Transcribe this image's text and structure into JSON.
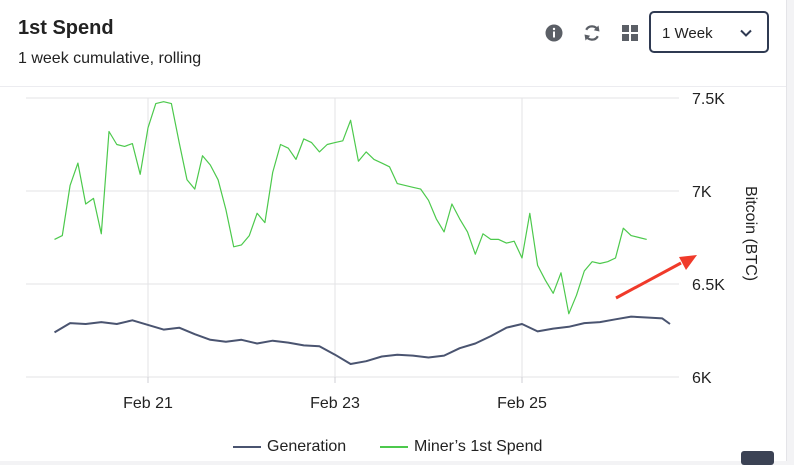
{
  "header": {
    "title": "1st Spend",
    "subtitle": "1 week cumulative, rolling",
    "period_select": {
      "value": "1 Week"
    }
  },
  "icons": [
    "info-icon",
    "refresh-icon",
    "grid-icon",
    "chevron-down-icon"
  ],
  "colors": {
    "generation": "#4a5470",
    "first_spend": "#4cc94c",
    "annotation_arrow": "#f03a2a"
  },
  "chart_data": {
    "type": "line",
    "ylabel": "Bitcoin (BTC)",
    "ylim": [
      6000,
      7500
    ],
    "y_ticks": [
      {
        "value": 6000,
        "label": "6K"
      },
      {
        "value": 6500,
        "label": "6.5K"
      },
      {
        "value": 7000,
        "label": "7K"
      },
      {
        "value": 7500,
        "label": "7.5K"
      }
    ],
    "x_ticks": [
      "Feb 21",
      "Feb 23",
      "Feb 25"
    ],
    "grid": true,
    "legend_position": "bottom",
    "series": [
      {
        "name": "Generation",
        "color": "#4a5470",
        "points": [
          [
            "Feb 20 00:00",
            6240
          ],
          [
            "Feb 20 04:00",
            6290
          ],
          [
            "Feb 20 08:00",
            6285
          ],
          [
            "Feb 20 12:00",
            6295
          ],
          [
            "Feb 20 16:00",
            6285
          ],
          [
            "Feb 20 20:00",
            6305
          ],
          [
            "Feb 21 00:00",
            6280
          ],
          [
            "Feb 21 04:00",
            6255
          ],
          [
            "Feb 21 08:00",
            6265
          ],
          [
            "Feb 21 12:00",
            6230
          ],
          [
            "Feb 21 16:00",
            6200
          ],
          [
            "Feb 21 20:00",
            6190
          ],
          [
            "Feb 22 00:00",
            6200
          ],
          [
            "Feb 22 04:00",
            6180
          ],
          [
            "Feb 22 08:00",
            6195
          ],
          [
            "Feb 22 12:00",
            6185
          ],
          [
            "Feb 22 16:00",
            6170
          ],
          [
            "Feb 22 20:00",
            6165
          ],
          [
            "Feb 23 00:00",
            6120
          ],
          [
            "Feb 23 04:00",
            6070
          ],
          [
            "Feb 23 08:00",
            6085
          ],
          [
            "Feb 23 12:00",
            6110
          ],
          [
            "Feb 23 16:00",
            6120
          ],
          [
            "Feb 23 20:00",
            6115
          ],
          [
            "Feb 24 00:00",
            6105
          ],
          [
            "Feb 24 04:00",
            6115
          ],
          [
            "Feb 24 08:00",
            6155
          ],
          [
            "Feb 24 12:00",
            6180
          ],
          [
            "Feb 24 16:00",
            6220
          ],
          [
            "Feb 24 20:00",
            6265
          ],
          [
            "Feb 25 00:00",
            6285
          ],
          [
            "Feb 25 04:00",
            6245
          ],
          [
            "Feb 25 08:00",
            6260
          ],
          [
            "Feb 25 12:00",
            6270
          ],
          [
            "Feb 25 16:00",
            6290
          ],
          [
            "Feb 25 20:00",
            6295
          ],
          [
            "Feb 26 00:00",
            6310
          ],
          [
            "Feb 26 04:00",
            6325
          ],
          [
            "Feb 26 08:00",
            6320
          ],
          [
            "Feb 26 12:00",
            6315
          ],
          [
            "Feb 26 14:00",
            6285
          ]
        ]
      },
      {
        "name": "Miner’s 1st Spend",
        "color": "#4cc94c",
        "points": [
          [
            "Feb 20 00:00",
            6740
          ],
          [
            "Feb 20 02:00",
            6760
          ],
          [
            "Feb 20 04:00",
            7030
          ],
          [
            "Feb 20 06:00",
            7150
          ],
          [
            "Feb 20 08:00",
            6930
          ],
          [
            "Feb 20 10:00",
            6960
          ],
          [
            "Feb 20 12:00",
            6770
          ],
          [
            "Feb 20 14:00",
            7320
          ],
          [
            "Feb 20 16:00",
            7250
          ],
          [
            "Feb 20 18:00",
            7240
          ],
          [
            "Feb 20 20:00",
            7255
          ],
          [
            "Feb 20 22:00",
            7090
          ],
          [
            "Feb 21 00:00",
            7340
          ],
          [
            "Feb 21 02:00",
            7470
          ],
          [
            "Feb 21 04:00",
            7480
          ],
          [
            "Feb 21 06:00",
            7470
          ],
          [
            "Feb 21 08:00",
            7260
          ],
          [
            "Feb 21 10:00",
            7060
          ],
          [
            "Feb 21 12:00",
            7010
          ],
          [
            "Feb 21 14:00",
            7190
          ],
          [
            "Feb 21 16:00",
            7140
          ],
          [
            "Feb 21 18:00",
            7060
          ],
          [
            "Feb 21 20:00",
            6900
          ],
          [
            "Feb 21 22:00",
            6700
          ],
          [
            "Feb 22 00:00",
            6710
          ],
          [
            "Feb 22 02:00",
            6760
          ],
          [
            "Feb 22 04:00",
            6880
          ],
          [
            "Feb 22 06:00",
            6830
          ],
          [
            "Feb 22 08:00",
            7100
          ],
          [
            "Feb 22 10:00",
            7250
          ],
          [
            "Feb 22 12:00",
            7230
          ],
          [
            "Feb 22 14:00",
            7170
          ],
          [
            "Feb 22 16:00",
            7280
          ],
          [
            "Feb 22 18:00",
            7260
          ],
          [
            "Feb 22 20:00",
            7210
          ],
          [
            "Feb 22 22:00",
            7250
          ],
          [
            "Feb 23 00:00",
            7260
          ],
          [
            "Feb 23 02:00",
            7270
          ],
          [
            "Feb 23 04:00",
            7380
          ],
          [
            "Feb 23 06:00",
            7160
          ],
          [
            "Feb 23 08:00",
            7210
          ],
          [
            "Feb 23 10:00",
            7170
          ],
          [
            "Feb 23 12:00",
            7150
          ],
          [
            "Feb 23 14:00",
            7130
          ],
          [
            "Feb 23 16:00",
            7040
          ],
          [
            "Feb 23 18:00",
            7030
          ],
          [
            "Feb 23 20:00",
            7020
          ],
          [
            "Feb 23 22:00",
            7010
          ],
          [
            "Feb 24 00:00",
            6950
          ],
          [
            "Feb 24 02:00",
            6850
          ],
          [
            "Feb 24 04:00",
            6780
          ],
          [
            "Feb 24 06:00",
            6930
          ],
          [
            "Feb 24 08:00",
            6850
          ],
          [
            "Feb 24 10:00",
            6780
          ],
          [
            "Feb 24 12:00",
            6660
          ],
          [
            "Feb 24 14:00",
            6770
          ],
          [
            "Feb 24 16:00",
            6740
          ],
          [
            "Feb 24 18:00",
            6740
          ],
          [
            "Feb 24 20:00",
            6720
          ],
          [
            "Feb 24 22:00",
            6730
          ],
          [
            "Feb 25 00:00",
            6640
          ],
          [
            "Feb 25 02:00",
            6880
          ],
          [
            "Feb 25 04:00",
            6600
          ],
          [
            "Feb 25 06:00",
            6520
          ],
          [
            "Feb 25 08:00",
            6450
          ],
          [
            "Feb 25 10:00",
            6560
          ],
          [
            "Feb 25 12:00",
            6340
          ],
          [
            "Feb 25 14:00",
            6440
          ],
          [
            "Feb 25 16:00",
            6570
          ],
          [
            "Feb 25 18:00",
            6620
          ],
          [
            "Feb 25 20:00",
            6610
          ],
          [
            "Feb 25 22:00",
            6620
          ],
          [
            "Feb 26 00:00",
            6640
          ],
          [
            "Feb 26 02:00",
            6800
          ],
          [
            "Feb 26 04:00",
            6760
          ],
          [
            "Feb 26 06:00",
            6750
          ],
          [
            "Feb 26 08:00",
            6740
          ]
        ]
      }
    ]
  }
}
